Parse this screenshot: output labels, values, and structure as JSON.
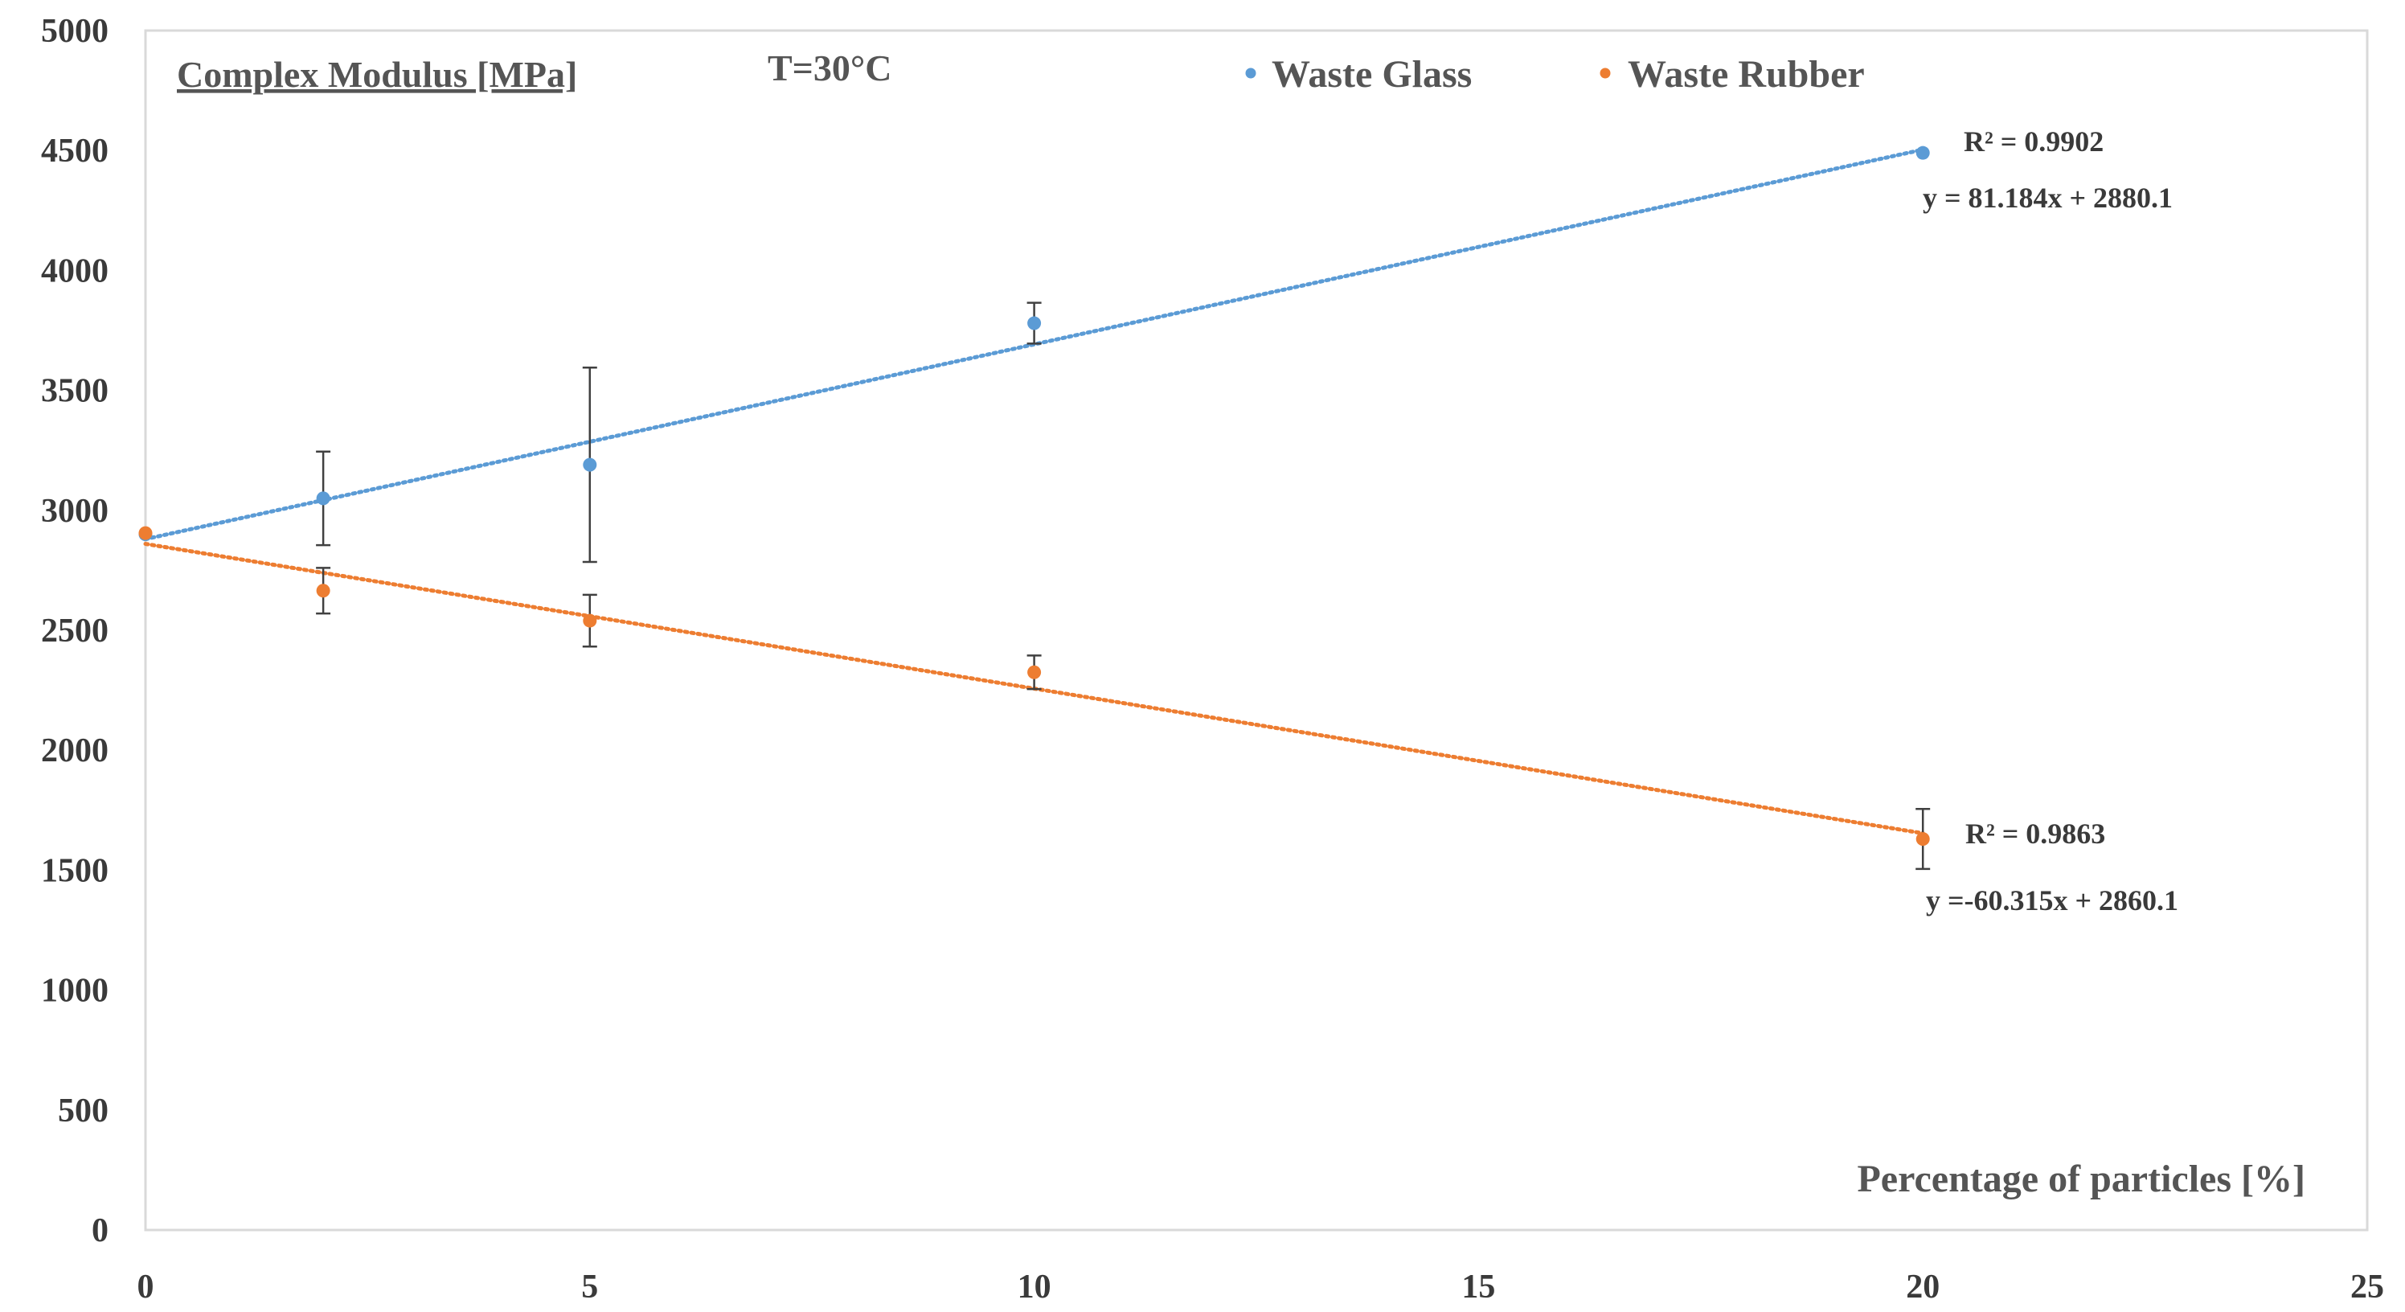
{
  "chart_data": {
    "type": "scatter",
    "title": "Complex Modulus [MPa]",
    "subtitle": "T=30°C",
    "xlabel": "Percentage of particles [%]",
    "ylabel": "Complex Modulus [MPa]",
    "xlim": [
      0,
      25
    ],
    "ylim": [
      0,
      5000
    ],
    "x_ticks": [
      0,
      5,
      10,
      15,
      20,
      25
    ],
    "y_ticks": [
      0,
      500,
      1000,
      1500,
      2000,
      2500,
      3000,
      3500,
      4000,
      4500,
      5000
    ],
    "grid": false,
    "legend_position": "top-right",
    "series": [
      {
        "name": "Waste Glass",
        "color": "#5b9bd5",
        "x": [
          0,
          2,
          5,
          10,
          20
        ],
        "y": [
          2900,
          3050,
          3190,
          3780,
          4490
        ],
        "error": [
          null,
          195,
          405,
          85,
          null
        ],
        "trendline": {
          "slope": 81.184,
          "intercept": 2880.1,
          "equation": "y = 81.184x + 2880.1",
          "r2": "R² = 0.9902"
        }
      },
      {
        "name": "Waste Rubber",
        "color": "#ed7d31",
        "x": [
          0,
          2,
          5,
          10,
          20
        ],
        "y": [
          2905,
          2665,
          2540,
          2325,
          1630
        ],
        "error": [
          null,
          95,
          108,
          70,
          125
        ],
        "trendline": {
          "slope": -60.315,
          "intercept": 2860.1,
          "equation": "y =-60.315x + 2860.1",
          "r2": "R² = 0.9863"
        }
      }
    ]
  }
}
